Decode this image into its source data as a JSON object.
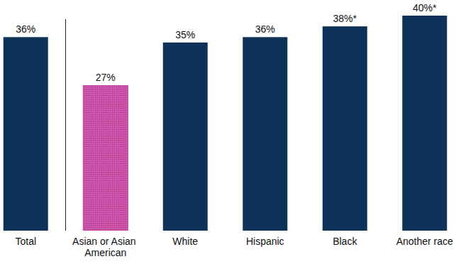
{
  "chart_data": {
    "type": "bar",
    "categories": [
      "Total",
      "Asian or Asian American",
      "White",
      "Hispanic",
      "Black",
      "Another race"
    ],
    "values": [
      36,
      27,
      35,
      36,
      38,
      40
    ],
    "value_labels": [
      "36%",
      "27%",
      "35%",
      "36%",
      "38%*",
      "40%*"
    ],
    "colors": [
      "#0e3358",
      "#c2449f",
      "#0e3358",
      "#0e3358",
      "#0e3358",
      "#0e3358"
    ],
    "ylim": [
      0,
      40
    ],
    "data_labels": true,
    "tick_labels": "x"
  }
}
